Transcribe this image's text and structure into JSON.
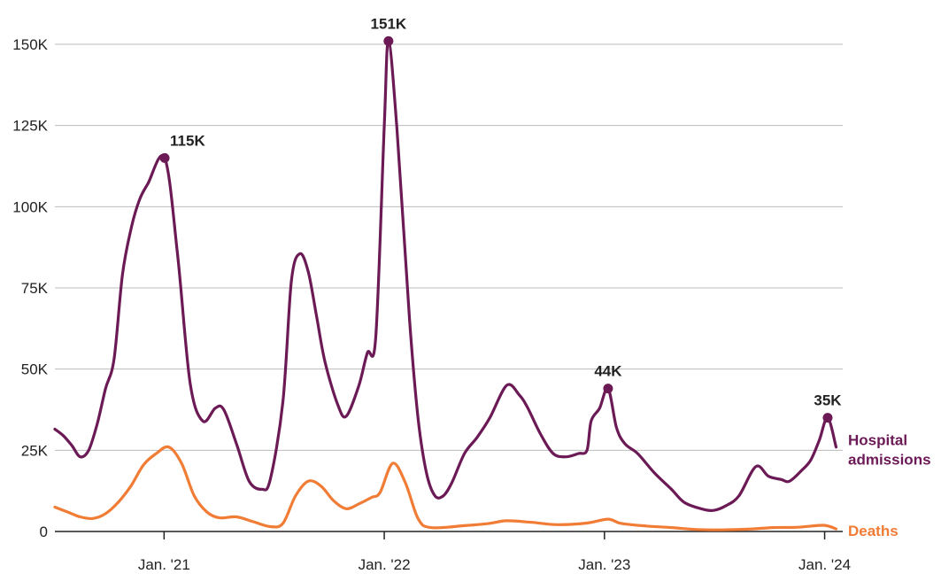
{
  "chart_data": {
    "type": "line",
    "x_axis": "date",
    "xlim": [
      "2020-07-04",
      "2024-01-31"
    ],
    "ylim": [
      0,
      150000
    ],
    "y_ticks": [
      0,
      25000,
      50000,
      75000,
      100000,
      125000,
      150000
    ],
    "y_tick_labels": [
      "0",
      "25K",
      "50K",
      "75K",
      "100K",
      "125K",
      "150K"
    ],
    "x_ticks": [
      "2021-01-01",
      "2022-01-01",
      "2023-01-01",
      "2024-01-01"
    ],
    "x_tick_labels": [
      "Jan. '21",
      "Jan. '22",
      "Jan. '23",
      "Jan. '24"
    ],
    "grid": "horizontal",
    "colors": {
      "admissions": "#6b1a55",
      "deaths": "#f07c35",
      "grid": "#bbbbbb",
      "axis": "#222222"
    },
    "series": [
      {
        "name": "Hospital admissions",
        "label": "Hospital\nadmissions",
        "color": "#6b1a55",
        "points": [
          [
            "2020-07-04",
            31500
          ],
          [
            "2020-07-18",
            29500
          ],
          [
            "2020-08-01",
            26500
          ],
          [
            "2020-08-15",
            23000
          ],
          [
            "2020-08-29",
            25000
          ],
          [
            "2020-09-12",
            33000
          ],
          [
            "2020-09-26",
            44000
          ],
          [
            "2020-10-10",
            53000
          ],
          [
            "2020-10-24",
            79000
          ],
          [
            "2020-11-07",
            93000
          ],
          [
            "2020-11-21",
            102000
          ],
          [
            "2020-12-05",
            107000
          ],
          [
            "2021-01-02",
            115000
          ],
          [
            "2021-01-23",
            86000
          ],
          [
            "2021-02-13",
            46000
          ],
          [
            "2021-03-06",
            34000
          ],
          [
            "2021-03-27",
            38000
          ],
          [
            "2021-04-10",
            37500
          ],
          [
            "2021-05-01",
            27000
          ],
          [
            "2021-05-22",
            15500
          ],
          [
            "2021-06-12",
            13000
          ],
          [
            "2021-06-26",
            16000
          ],
          [
            "2021-07-17",
            40000
          ],
          [
            "2021-07-31",
            77000
          ],
          [
            "2021-08-14",
            85500
          ],
          [
            "2021-08-28",
            80000
          ],
          [
            "2021-09-11",
            66000
          ],
          [
            "2021-09-25",
            52000
          ],
          [
            "2021-10-16",
            39000
          ],
          [
            "2021-10-30",
            35500
          ],
          [
            "2021-11-20",
            45000
          ],
          [
            "2021-12-04",
            55000
          ],
          [
            "2021-12-18",
            60000
          ],
          [
            "2022-01-01",
            125000
          ],
          [
            "2022-01-08",
            151000
          ],
          [
            "2022-01-22",
            124000
          ],
          [
            "2022-02-12",
            65000
          ],
          [
            "2022-02-26",
            35000
          ],
          [
            "2022-03-12",
            18000
          ],
          [
            "2022-03-26",
            11000
          ],
          [
            "2022-04-09",
            11000
          ],
          [
            "2022-04-23",
            15000
          ],
          [
            "2022-05-14",
            24000
          ],
          [
            "2022-06-04",
            29000
          ],
          [
            "2022-06-25",
            35000
          ],
          [
            "2022-07-23",
            45000
          ],
          [
            "2022-08-13",
            42000
          ],
          [
            "2022-08-27",
            38000
          ],
          [
            "2022-09-17",
            30000
          ],
          [
            "2022-10-08",
            24000
          ],
          [
            "2022-10-29",
            23000
          ],
          [
            "2022-11-19",
            24000
          ],
          [
            "2022-12-03",
            25000
          ],
          [
            "2022-12-10",
            34000
          ],
          [
            "2022-12-24",
            38000
          ],
          [
            "2023-01-07",
            44000
          ],
          [
            "2023-01-21",
            32000
          ],
          [
            "2023-02-04",
            27000
          ],
          [
            "2023-02-25",
            24000
          ],
          [
            "2023-03-25",
            18000
          ],
          [
            "2023-04-22",
            13000
          ],
          [
            "2023-05-13",
            9000
          ],
          [
            "2023-06-10",
            7000
          ],
          [
            "2023-07-01",
            6500
          ],
          [
            "2023-07-22",
            8000
          ],
          [
            "2023-08-12",
            11000
          ],
          [
            "2023-09-09",
            20000
          ],
          [
            "2023-09-30",
            17000
          ],
          [
            "2023-10-21",
            16000
          ],
          [
            "2023-11-04",
            15500
          ],
          [
            "2023-11-25",
            19000
          ],
          [
            "2023-12-09",
            22000
          ],
          [
            "2023-12-23",
            28000
          ],
          [
            "2024-01-06",
            35000
          ],
          [
            "2024-01-20",
            26000
          ]
        ]
      },
      {
        "name": "Deaths",
        "label": "Deaths",
        "color": "#f07c35",
        "points": [
          [
            "2020-07-04",
            7500
          ],
          [
            "2020-07-25",
            6000
          ],
          [
            "2020-08-15",
            4500
          ],
          [
            "2020-09-05",
            4000
          ],
          [
            "2020-09-26",
            5500
          ],
          [
            "2020-10-17",
            9000
          ],
          [
            "2020-11-07",
            14000
          ],
          [
            "2020-11-28",
            20500
          ],
          [
            "2020-12-19",
            24000
          ],
          [
            "2021-01-09",
            26000
          ],
          [
            "2021-01-30",
            21000
          ],
          [
            "2021-02-20",
            11000
          ],
          [
            "2021-03-13",
            6000
          ],
          [
            "2021-04-03",
            4200
          ],
          [
            "2021-05-01",
            4500
          ],
          [
            "2021-05-29",
            3000
          ],
          [
            "2021-06-26",
            1500
          ],
          [
            "2021-07-17",
            2500
          ],
          [
            "2021-08-07",
            11000
          ],
          [
            "2021-08-28",
            15500
          ],
          [
            "2021-09-18",
            14000
          ],
          [
            "2021-10-09",
            9500
          ],
          [
            "2021-10-30",
            7000
          ],
          [
            "2021-11-20",
            8500
          ],
          [
            "2021-12-11",
            10500
          ],
          [
            "2021-12-25",
            12000
          ],
          [
            "2022-01-15",
            21000
          ],
          [
            "2022-02-05",
            15000
          ],
          [
            "2022-02-26",
            4000
          ],
          [
            "2022-03-19",
            1200
          ],
          [
            "2022-05-14",
            1800
          ],
          [
            "2022-06-25",
            2500
          ],
          [
            "2022-07-23",
            3300
          ],
          [
            "2022-09-03",
            2800
          ],
          [
            "2022-10-15",
            2100
          ],
          [
            "2022-12-03",
            2600
          ],
          [
            "2023-01-07",
            3800
          ],
          [
            "2023-01-28",
            2500
          ],
          [
            "2023-03-11",
            1700
          ],
          [
            "2023-04-22",
            1200
          ],
          [
            "2023-06-03",
            600
          ],
          [
            "2023-07-15",
            500
          ],
          [
            "2023-08-26",
            700
          ],
          [
            "2023-10-07",
            1200
          ],
          [
            "2023-11-18",
            1300
          ],
          [
            "2023-12-30",
            1900
          ],
          [
            "2024-01-20",
            800
          ]
        ]
      }
    ],
    "annotations": [
      {
        "date": "2021-01-02",
        "value": 115000,
        "label": "115K"
      },
      {
        "date": "2022-01-08",
        "value": 151000,
        "label": "151K"
      },
      {
        "date": "2023-01-07",
        "value": 44000,
        "label": "44K"
      },
      {
        "date": "2024-01-06",
        "value": 35000,
        "label": "35K"
      }
    ]
  }
}
